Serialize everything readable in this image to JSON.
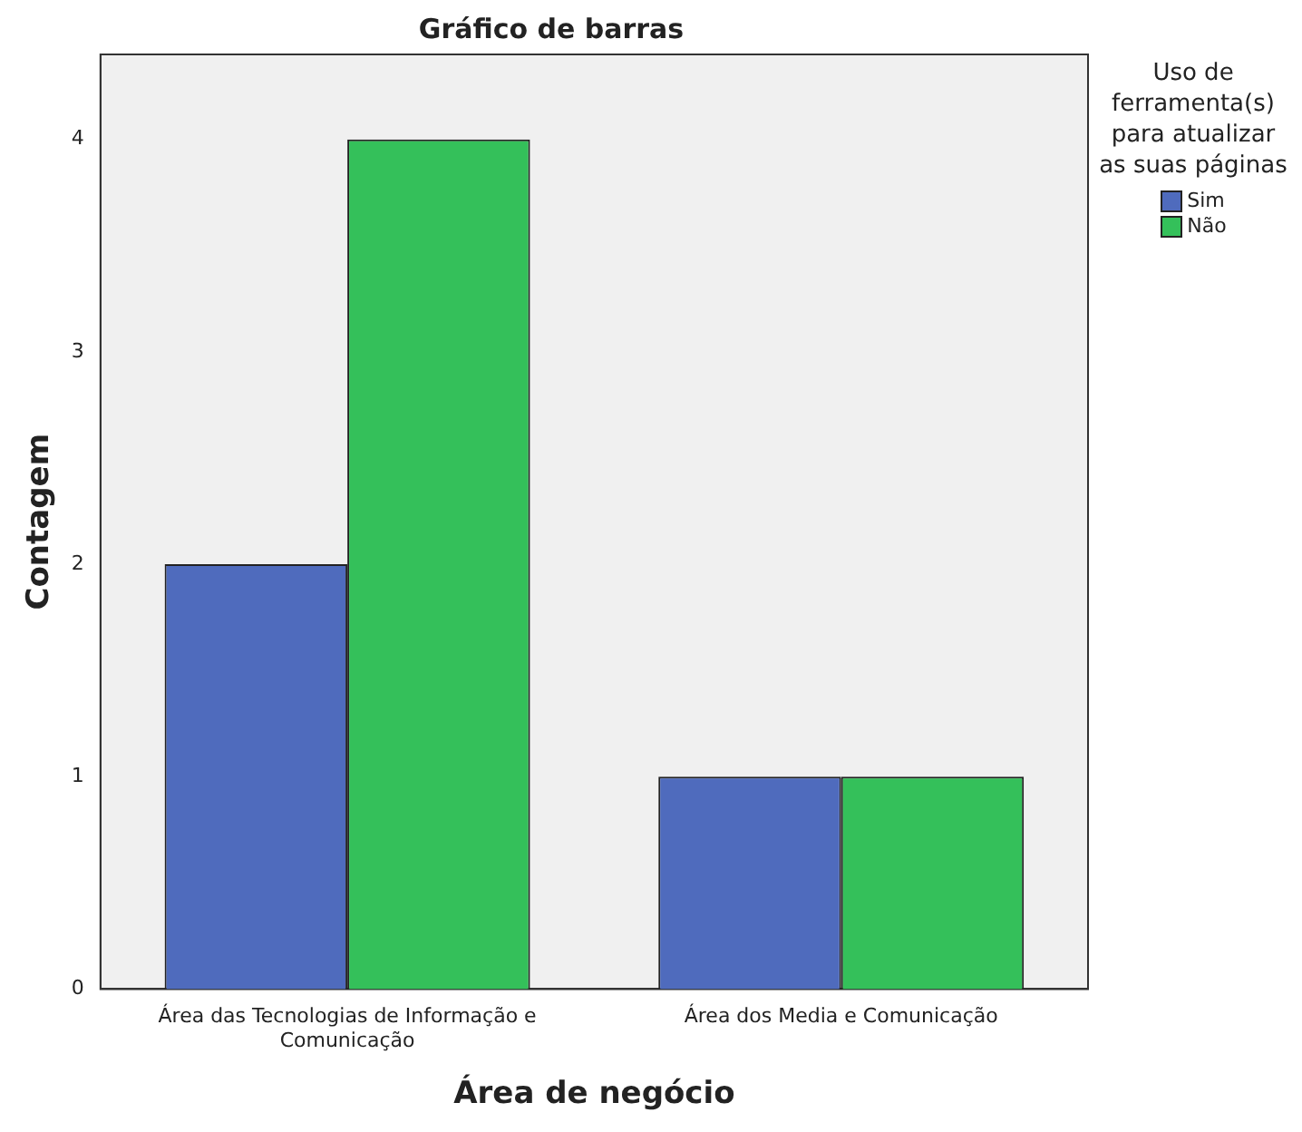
{
  "chart_data": {
    "type": "bar",
    "title": "Gráfico de barras",
    "xlabel": "Área de negócio",
    "ylabel": "Contagem",
    "legend_title": "Uso de ferramenta(s) para atualizar as suas páginas",
    "categories": [
      "Área das Tecnologias de Informação e Comunicação",
      "Área dos Media e Comunicação"
    ],
    "series": [
      {
        "name": "Sim",
        "color": "#4f6bbd",
        "values": [
          2,
          1
        ]
      },
      {
        "name": "Não",
        "color": "#34c05a",
        "values": [
          4,
          1
        ]
      }
    ],
    "ylim": [
      0,
      4.4
    ],
    "yticks": [
      0,
      1,
      2,
      3,
      4
    ],
    "grid": false,
    "legend": "top right"
  }
}
